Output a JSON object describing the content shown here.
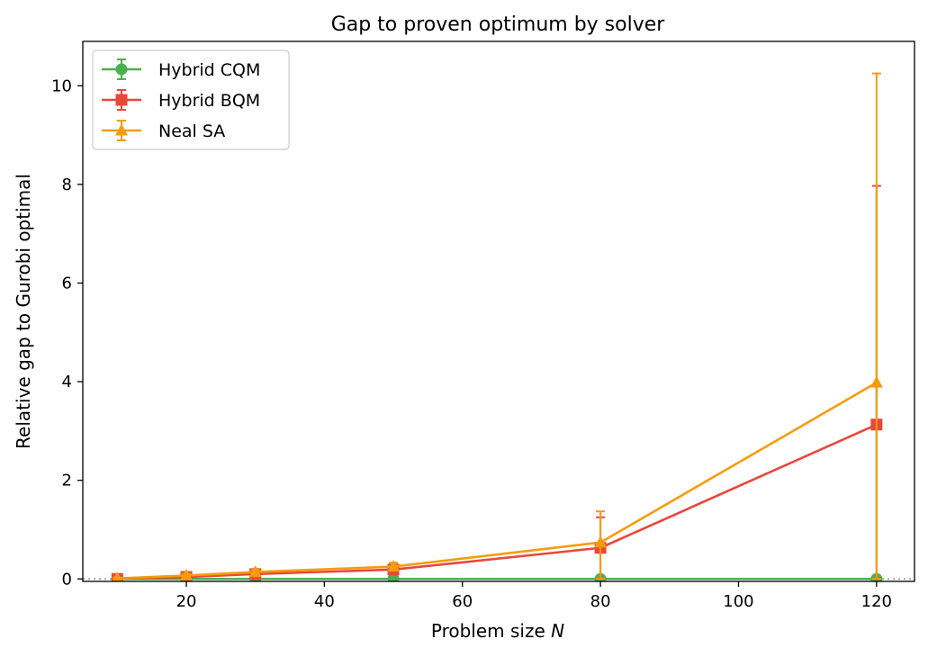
{
  "chart_data": {
    "type": "line",
    "title": "Gap to proven optimum by solver",
    "xlabel": "Problem size",
    "xlabel_var": "N",
    "ylabel": "Relative gap to Gurobi optimal",
    "xlim": [
      5,
      125.5
    ],
    "ylim": [
      -0.05,
      10.9
    ],
    "x_ticks": [
      20,
      40,
      60,
      80,
      100,
      120
    ],
    "y_ticks": [
      0,
      2,
      4,
      6,
      8,
      10
    ],
    "grid": false,
    "legend_position": "upper-left",
    "reference_line": {
      "y": 0,
      "style": "dotted",
      "color": "#b0b0b0"
    },
    "series": [
      {
        "name": "Hybrid CQM",
        "color": "#4caf50",
        "marker": "circle",
        "x": [
          10,
          20,
          30,
          50,
          80,
          120
        ],
        "y": [
          0,
          0,
          0,
          0,
          0,
          0
        ],
        "err_low": [
          0,
          0,
          0,
          0,
          0,
          0
        ],
        "err_high": [
          0,
          0,
          0,
          0,
          0,
          0
        ]
      },
      {
        "name": "Hybrid BQM",
        "color": "#e8483b",
        "marker": "square",
        "x": [
          10,
          20,
          30,
          50,
          80,
          120
        ],
        "y": [
          0.0,
          0.04,
          0.1,
          0.19,
          0.63,
          3.13
        ],
        "err_low": [
          0.0,
          0.02,
          0.03,
          0.05,
          0.63,
          3.13
        ],
        "err_high": [
          0.0,
          0.02,
          0.04,
          0.07,
          0.62,
          4.84
        ]
      },
      {
        "name": "Neal SA",
        "color": "#f59c0c",
        "marker": "triangle",
        "x": [
          10,
          20,
          30,
          50,
          80,
          120
        ],
        "y": [
          0.01,
          0.07,
          0.14,
          0.25,
          0.74,
          3.98
        ],
        "err_low": [
          0.01,
          0.03,
          0.04,
          0.07,
          0.74,
          3.98
        ],
        "err_high": [
          0.02,
          0.03,
          0.05,
          0.08,
          0.63,
          6.27
        ]
      }
    ]
  }
}
